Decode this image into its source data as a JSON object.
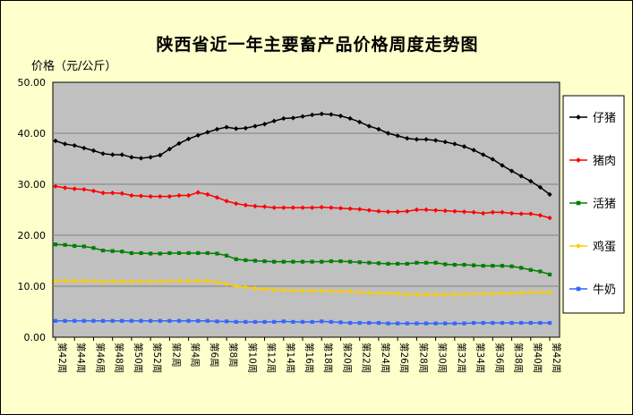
{
  "chart_data": {
    "type": "line",
    "title": "陕西省近一年主要畜产品价格周度走势图",
    "ylabel": "价格（元/公斤）",
    "ylim": [
      0,
      50
    ],
    "yticks": [
      "0.00",
      "10.00",
      "20.00",
      "30.00",
      "40.00",
      "50.00"
    ],
    "grid": true,
    "legend_position": "right",
    "categories": [
      "第42周",
      "第43周",
      "第44周",
      "第45周",
      "第46周",
      "第47周",
      "第48周",
      "第49周",
      "第50周",
      "第51周",
      "第52周",
      "第1周",
      "第2周",
      "第3周",
      "第4周",
      "第5周",
      "第6周",
      "第7周",
      "第8周",
      "第9周",
      "第10周",
      "第11周",
      "第12周",
      "第13周",
      "第14周",
      "第15周",
      "第16周",
      "第17周",
      "第18周",
      "第19周",
      "第20周",
      "第21周",
      "第22周",
      "第23周",
      "第24周",
      "第25周",
      "第26周",
      "第27周",
      "第28周",
      "第29周",
      "第30周",
      "第31周",
      "第32周",
      "第33周",
      "第34周",
      "第35周",
      "第36周",
      "第37周",
      "第38周",
      "第39周",
      "第40周",
      "第41周",
      "第42周"
    ],
    "x_tick_labels": [
      "第42周",
      "第44周",
      "第46周",
      "第48周",
      "第50周",
      "第52周",
      "第2周",
      "第4周",
      "第6周",
      "第8周",
      "第10周",
      "第12周",
      "第14周",
      "第16周",
      "第18周",
      "第20周",
      "第22周",
      "第24周",
      "第26周",
      "第28周",
      "第30周",
      "第32周",
      "第34周",
      "第36周",
      "第38周",
      "第40周",
      "第42周"
    ],
    "series": [
      {
        "name": "仔猪",
        "color": "#000000",
        "marker": "diamond",
        "values": [
          38.5,
          37.9,
          37.6,
          37.1,
          36.6,
          36.0,
          35.8,
          35.8,
          35.3,
          35.1,
          35.3,
          35.7,
          36.9,
          38.0,
          38.9,
          39.6,
          40.2,
          40.8,
          41.2,
          40.9,
          41.0,
          41.4,
          41.8,
          42.4,
          42.9,
          43.0,
          43.3,
          43.6,
          43.8,
          43.7,
          43.4,
          42.9,
          42.2,
          41.4,
          40.8,
          40.0,
          39.5,
          39.0,
          38.8,
          38.8,
          38.6,
          38.3,
          37.9,
          37.4,
          36.7,
          35.8,
          34.9,
          33.7,
          32.6,
          31.6,
          30.6,
          29.4,
          28.0
        ]
      },
      {
        "name": "猪肉",
        "color": "#ff0000",
        "marker": "diamond",
        "values": [
          29.6,
          29.3,
          29.1,
          29.0,
          28.7,
          28.3,
          28.3,
          28.2,
          27.8,
          27.7,
          27.6,
          27.6,
          27.6,
          27.8,
          27.8,
          28.4,
          28.0,
          27.4,
          26.7,
          26.2,
          25.9,
          25.7,
          25.6,
          25.4,
          25.4,
          25.4,
          25.4,
          25.4,
          25.5,
          25.4,
          25.3,
          25.2,
          25.1,
          24.9,
          24.7,
          24.6,
          24.6,
          24.7,
          25.0,
          25.0,
          24.9,
          24.8,
          24.7,
          24.6,
          24.5,
          24.3,
          24.5,
          24.5,
          24.3,
          24.2,
          24.2,
          23.9,
          23.4
        ]
      },
      {
        "name": "活猪",
        "color": "#008000",
        "marker": "square",
        "values": [
          18.2,
          18.1,
          17.9,
          17.8,
          17.5,
          17.0,
          16.9,
          16.8,
          16.5,
          16.5,
          16.4,
          16.4,
          16.5,
          16.5,
          16.5,
          16.5,
          16.5,
          16.4,
          16.0,
          15.3,
          15.1,
          15.0,
          14.9,
          14.8,
          14.8,
          14.8,
          14.8,
          14.8,
          14.8,
          14.9,
          14.9,
          14.8,
          14.7,
          14.6,
          14.5,
          14.4,
          14.4,
          14.4,
          14.6,
          14.6,
          14.6,
          14.3,
          14.2,
          14.2,
          14.1,
          14.0,
          14.0,
          14.0,
          13.9,
          13.6,
          13.2,
          12.9,
          12.3
        ]
      },
      {
        "name": "鸡蛋",
        "color": "#ffcc00",
        "marker": "diamond",
        "values": [
          11.0,
          11.0,
          11.0,
          11.0,
          11.0,
          10.9,
          10.9,
          10.9,
          10.9,
          10.9,
          10.9,
          10.9,
          11.0,
          11.0,
          11.0,
          11.1,
          11.0,
          10.8,
          10.4,
          10.0,
          9.8,
          9.6,
          9.4,
          9.3,
          9.2,
          9.1,
          9.1,
          9.1,
          9.1,
          9.0,
          9.0,
          9.0,
          8.8,
          8.7,
          8.6,
          8.6,
          8.5,
          8.4,
          8.4,
          8.4,
          8.4,
          8.4,
          8.4,
          8.4,
          8.5,
          8.5,
          8.5,
          8.6,
          8.6,
          8.7,
          8.8,
          8.8,
          8.8
        ]
      },
      {
        "name": "牛奶",
        "color": "#3366ff",
        "marker": "square",
        "values": [
          3.2,
          3.2,
          3.2,
          3.2,
          3.2,
          3.2,
          3.2,
          3.2,
          3.2,
          3.2,
          3.2,
          3.2,
          3.2,
          3.2,
          3.2,
          3.2,
          3.2,
          3.1,
          3.1,
          3.0,
          3.0,
          3.0,
          3.0,
          3.0,
          3.1,
          3.0,
          3.0,
          3.0,
          3.1,
          3.0,
          2.9,
          2.8,
          2.8,
          2.8,
          2.8,
          2.7,
          2.7,
          2.7,
          2.7,
          2.7,
          2.7,
          2.7,
          2.7,
          2.7,
          2.8,
          2.8,
          2.8,
          2.8,
          2.8,
          2.8,
          2.8,
          2.8,
          2.8
        ]
      }
    ]
  }
}
